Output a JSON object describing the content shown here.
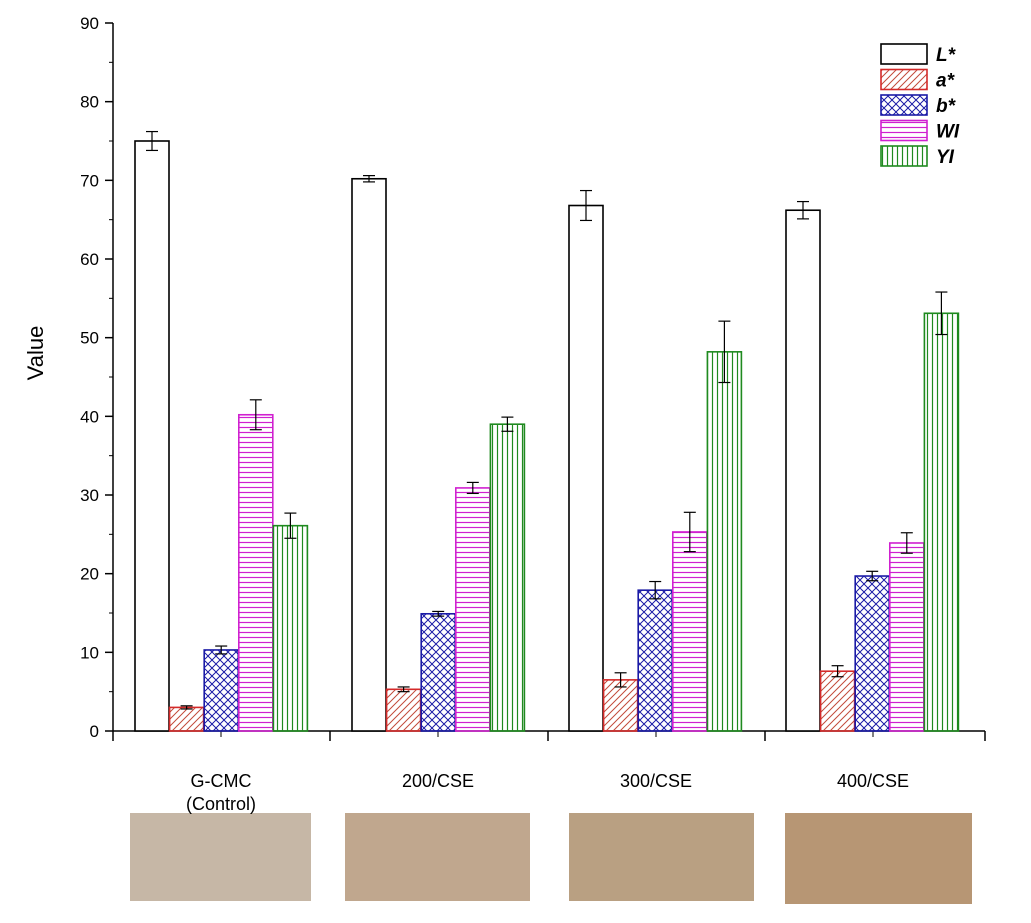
{
  "chart_data": {
    "type": "bar",
    "title": "",
    "xlabel": "",
    "ylabel": "Value",
    "ylim": [
      0,
      90
    ],
    "yticks": [
      0,
      10,
      20,
      30,
      40,
      50,
      60,
      70,
      80,
      90
    ],
    "categories": [
      "G-CMC\n(Control)",
      "200/CSE",
      "300/CSE",
      "400/CSE"
    ],
    "series": [
      {
        "name": "L*",
        "color": "#000000",
        "pattern": "none",
        "values": [
          75.0,
          70.2,
          66.8,
          66.2
        ],
        "errors": [
          1.2,
          0.4,
          1.9,
          1.1
        ]
      },
      {
        "name": "a*",
        "color": "#d42a2a",
        "pattern": "diag",
        "values": [
          3.0,
          5.3,
          6.5,
          7.6
        ],
        "errors": [
          0.2,
          0.3,
          0.9,
          0.7
        ]
      },
      {
        "name": "b*",
        "color": "#1a1aa6",
        "pattern": "cross",
        "values": [
          10.3,
          14.9,
          17.9,
          19.7
        ],
        "errors": [
          0.5,
          0.3,
          1.1,
          0.6
        ]
      },
      {
        "name": "WI",
        "color": "#d020d0",
        "pattern": "horiz",
        "values": [
          40.2,
          30.9,
          25.3,
          23.9
        ],
        "errors": [
          1.9,
          0.7,
          2.5,
          1.3
        ]
      },
      {
        "name": "YI",
        "color": "#1f8a1f",
        "pattern": "vert",
        "values": [
          26.1,
          39.0,
          48.2,
          53.1
        ],
        "errors": [
          1.6,
          0.9,
          3.9,
          2.7
        ]
      }
    ],
    "legend_position": "top-right",
    "color_swatches": [
      {
        "category": "G-CMC (Control)",
        "color": "#c6b7a6"
      },
      {
        "category": "200/CSE",
        "color": "#c0a78e"
      },
      {
        "category": "300/CSE",
        "color": "#b9a082"
      },
      {
        "category": "400/CSE",
        "color": "#b79674"
      }
    ]
  }
}
